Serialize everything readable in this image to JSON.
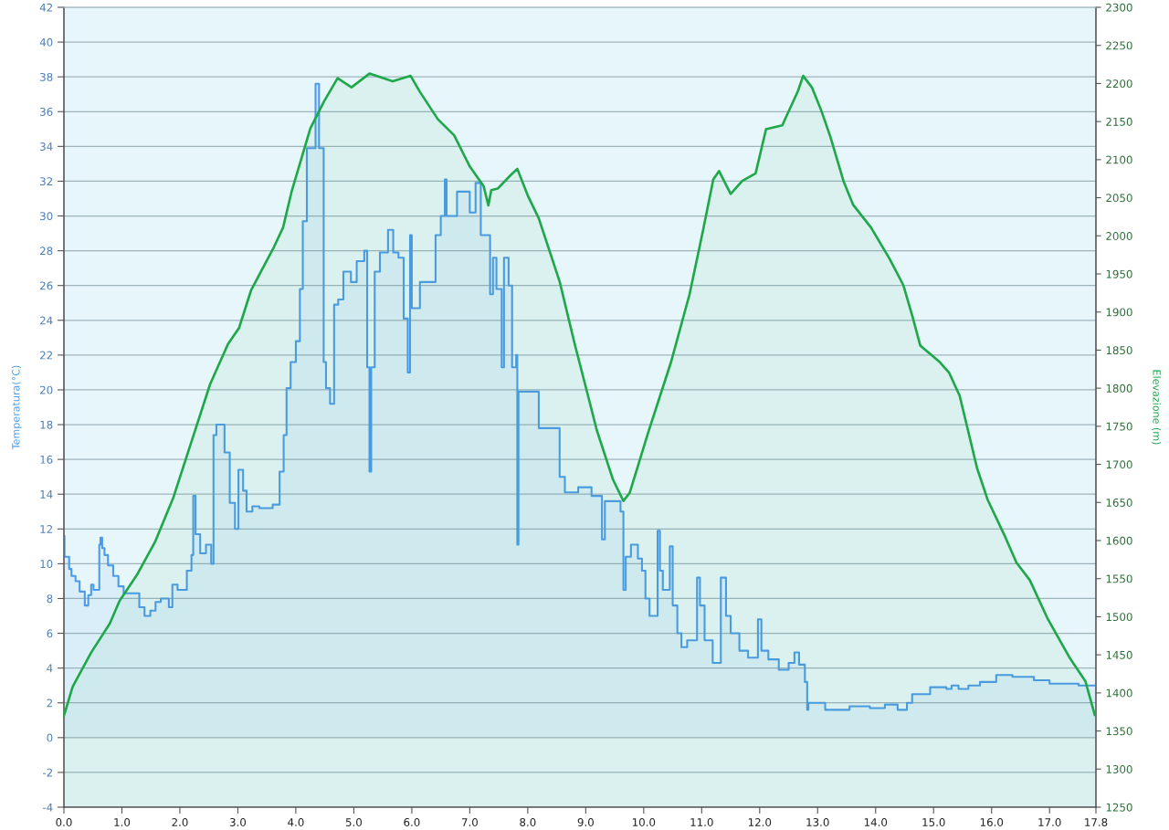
{
  "chart_data": {
    "type": "area",
    "ylabel": "Temperatura(°C)",
    "y2label": "Elevazione (m)",
    "xlim": [
      0,
      17.8
    ],
    "xticks": [
      {
        "value": 0,
        "label": "0.0"
      },
      {
        "value": 1,
        "label": "1.0"
      },
      {
        "value": 2,
        "label": "2.0"
      },
      {
        "value": 3,
        "label": "3.0"
      },
      {
        "value": 4,
        "label": "4.0"
      },
      {
        "value": 5,
        "label": "5.0"
      },
      {
        "value": 6,
        "label": "6.0"
      },
      {
        "value": 7,
        "label": "7.0"
      },
      {
        "value": 8,
        "label": "8.0"
      },
      {
        "value": 9,
        "label": "9.0"
      },
      {
        "value": 10,
        "label": "10.0"
      },
      {
        "value": 11,
        "label": "11.0"
      },
      {
        "value": 12,
        "label": "12.0"
      },
      {
        "value": 13,
        "label": "13.0"
      },
      {
        "value": 14,
        "label": "14.0"
      },
      {
        "value": 15,
        "label": "15.0"
      },
      {
        "value": 16,
        "label": "16.0"
      },
      {
        "value": 17,
        "label": "17.0"
      },
      17.8
    ],
    "ylim": [
      -4,
      42
    ],
    "yticks": [
      -4,
      -2,
      0,
      2,
      4,
      6,
      8,
      10,
      12,
      14,
      16,
      18,
      20,
      22,
      24,
      26,
      28,
      30,
      32,
      34,
      36,
      38,
      40,
      42
    ],
    "y2lim": [
      1250,
      2300
    ],
    "y2ticks": [
      1250,
      1300,
      1350,
      1400,
      1450,
      1500,
      1550,
      1600,
      1650,
      1700,
      1750,
      1800,
      1850,
      1900,
      1950,
      2000,
      2050,
      2100,
      2150,
      2200,
      2250,
      2300
    ],
    "grid": "y",
    "series": [
      {
        "color": "#4c9be8",
        "x": [
          0.0,
          0.01,
          0.01,
          0.09,
          0.09,
          0.13,
          0.13,
          0.2,
          0.2,
          0.27,
          0.27,
          0.36,
          0.36,
          0.42,
          0.42,
          0.47,
          0.47,
          0.51,
          0.51,
          0.61,
          0.61,
          0.63,
          0.63,
          0.66,
          0.66,
          0.7,
          0.7,
          0.76,
          0.76,
          0.85,
          0.85,
          0.94,
          0.94,
          1.03,
          1.03,
          1.3,
          1.3,
          1.39,
          1.39,
          1.49,
          1.49,
          1.58,
          1.58,
          1.67,
          1.67,
          1.81,
          1.81,
          1.87,
          1.87,
          1.96,
          1.96,
          2.12,
          2.12,
          2.2,
          2.2,
          2.23,
          2.23,
          2.27,
          2.27,
          2.35,
          2.35,
          2.45,
          2.45,
          2.54,
          2.54,
          2.58,
          2.58,
          2.63,
          2.63,
          2.77,
          2.77,
          2.86,
          2.86,
          2.95,
          2.95,
          3.01,
          3.01,
          3.09,
          3.09,
          3.15,
          3.15,
          3.25,
          3.25,
          3.37,
          3.37,
          3.6,
          3.6,
          3.72,
          3.72,
          3.79,
          3.79,
          3.84,
          3.84,
          3.91,
          3.91,
          4.0,
          4.0,
          4.07,
          4.07,
          4.12,
          4.12,
          4.19,
          4.19,
          4.34,
          4.34,
          4.4,
          4.4,
          4.48,
          4.48,
          4.52,
          4.52,
          4.59,
          4.59,
          4.66,
          4.66,
          4.73,
          4.73,
          4.82,
          4.82,
          4.95,
          4.95,
          5.05,
          5.05,
          5.18,
          5.18,
          5.23,
          5.23,
          5.27,
          5.27,
          5.3,
          5.3,
          5.36,
          5.36,
          5.45,
          5.45,
          5.59,
          5.59,
          5.68,
          5.68,
          5.77,
          5.77,
          5.86,
          5.86,
          5.93,
          5.93,
          5.97,
          5.97,
          6.0,
          6.0,
          6.14,
          6.14,
          6.41,
          6.41,
          6.5,
          6.5,
          6.57,
          6.57,
          6.6,
          6.6,
          6.78,
          6.78,
          7.0,
          7.0,
          7.1,
          7.1,
          7.19,
          7.19,
          7.35,
          7.35,
          7.4,
          7.4,
          7.46,
          7.46,
          7.55,
          7.55,
          7.59,
          7.59,
          7.67,
          7.67,
          7.73,
          7.73,
          7.8,
          7.8,
          7.82,
          7.82,
          7.84,
          7.84,
          8.19,
          8.19,
          8.55,
          8.55,
          8.64,
          8.64,
          8.87,
          8.87,
          9.1,
          9.1,
          9.28,
          9.28,
          9.33,
          9.33,
          9.6,
          9.6,
          9.65,
          9.65,
          9.69,
          9.69,
          9.78,
          9.78,
          9.9,
          9.9,
          9.97,
          9.97,
          10.03,
          10.03,
          10.1,
          10.1,
          10.24,
          10.24,
          10.28,
          10.28,
          10.33,
          10.33,
          10.45,
          10.45,
          10.5,
          10.5,
          10.58,
          10.58,
          10.65,
          10.65,
          10.75,
          10.75,
          10.92,
          10.92,
          10.97,
          10.97,
          11.05,
          11.05,
          11.19,
          11.19,
          11.33,
          11.33,
          11.42,
          11.42,
          11.5,
          11.5,
          11.65,
          11.65,
          11.8,
          11.8,
          11.97,
          11.97,
          12.03,
          12.03,
          12.15,
          12.15,
          12.33,
          12.33,
          12.5,
          12.5,
          12.6,
          12.6,
          12.68,
          12.68,
          12.78,
          12.78,
          12.82,
          12.82,
          12.84,
          12.84,
          13.13,
          13.13,
          13.55,
          13.55,
          13.9,
          13.9,
          14.16,
          14.16,
          14.38,
          14.38,
          14.54,
          14.54,
          14.63,
          14.63,
          14.94,
          14.94,
          15.22,
          15.22,
          15.31,
          15.31,
          15.43,
          15.43,
          15.6,
          15.6,
          15.8,
          15.8,
          16.08,
          16.08,
          16.36,
          16.36,
          16.73,
          16.73,
          17.0,
          17.0,
          17.5,
          17.5,
          17.8
        ],
        "values": [
          11.6,
          11.6,
          10.4,
          10.4,
          9.7,
          9.7,
          9.3,
          9.3,
          9.0,
          9.0,
          8.4,
          8.4,
          7.6,
          7.6,
          8.2,
          8.2,
          8.8,
          8.8,
          8.5,
          8.5,
          11.1,
          11.1,
          11.5,
          11.5,
          10.9,
          10.9,
          10.5,
          10.5,
          9.9,
          9.9,
          9.3,
          9.3,
          8.7,
          8.7,
          8.3,
          8.3,
          7.5,
          7.5,
          7.0,
          7.0,
          7.3,
          7.3,
          7.8,
          7.8,
          8.0,
          8.0,
          7.5,
          7.5,
          8.8,
          8.8,
          8.5,
          8.5,
          9.6,
          9.6,
          10.5,
          10.5,
          13.9,
          13.9,
          11.7,
          11.7,
          10.6,
          10.6,
          11.1,
          11.1,
          10.0,
          10.0,
          17.4,
          17.4,
          18.0,
          18.0,
          16.4,
          16.4,
          13.5,
          13.5,
          12.0,
          12.0,
          15.4,
          15.4,
          14.2,
          14.2,
          13.0,
          13.0,
          13.3,
          13.3,
          13.2,
          13.2,
          13.4,
          13.4,
          15.3,
          15.3,
          17.4,
          17.4,
          20.1,
          20.1,
          21.6,
          21.6,
          22.8,
          22.8,
          25.8,
          25.8,
          29.7,
          29.7,
          33.9,
          33.9,
          37.6,
          37.6,
          33.9,
          33.9,
          21.6,
          21.6,
          20.1,
          20.1,
          19.2,
          19.2,
          24.9,
          24.9,
          25.2,
          25.2,
          26.8,
          26.8,
          26.2,
          26.2,
          27.4,
          27.4,
          28.0,
          28.0,
          21.3,
          21.3,
          15.3,
          15.3,
          21.3,
          21.3,
          26.8,
          26.8,
          27.9,
          27.9,
          29.2,
          29.2,
          27.9,
          27.9,
          27.6,
          27.6,
          24.1,
          24.1,
          21.0,
          21.0,
          28.9,
          28.9,
          24.7,
          24.7,
          26.2,
          26.2,
          28.9,
          28.9,
          30.0,
          30.0,
          32.1,
          32.1,
          30.0,
          30.0,
          31.4,
          31.4,
          30.2,
          30.2,
          31.9,
          31.9,
          28.9,
          28.9,
          25.5,
          25.5,
          27.6,
          27.6,
          25.8,
          25.8,
          21.3,
          21.3,
          27.6,
          27.6,
          26.0,
          26.0,
          21.3,
          21.3,
          22.0,
          22.0,
          11.1,
          11.1,
          19.9,
          19.9,
          17.8,
          17.8,
          15.0,
          15.0,
          14.1,
          14.1,
          14.4,
          14.4,
          13.9,
          13.9,
          11.4,
          11.4,
          13.6,
          13.6,
          13.0,
          13.0,
          8.5,
          8.5,
          10.4,
          10.4,
          11.1,
          11.1,
          10.3,
          10.3,
          9.6,
          9.6,
          8.0,
          8.0,
          7.0,
          7.0,
          11.9,
          11.9,
          9.6,
          9.6,
          8.5,
          8.5,
          11.0,
          11.0,
          7.6,
          7.6,
          6.0,
          6.0,
          5.2,
          5.2,
          5.6,
          5.6,
          9.2,
          9.2,
          7.6,
          7.6,
          5.6,
          5.6,
          4.3,
          4.3,
          9.2,
          9.2,
          7.0,
          7.0,
          6.0,
          6.0,
          5.0,
          5.0,
          4.6,
          4.6,
          6.8,
          6.8,
          5.0,
          5.0,
          4.5,
          4.5,
          3.9,
          3.9,
          4.3,
          4.3,
          4.9,
          4.9,
          4.2,
          4.2,
          3.2,
          3.2,
          1.6,
          1.6,
          2.0,
          2.0,
          1.6,
          1.6,
          1.8,
          1.8,
          1.7,
          1.7,
          1.9,
          1.9,
          1.6,
          1.6,
          2.0,
          2.0,
          2.5,
          2.5,
          2.9,
          2.9,
          2.8,
          2.8,
          3.0,
          3.0,
          2.8,
          2.8,
          3.0,
          3.0,
          3.2,
          3.2,
          3.6,
          3.6,
          3.5,
          3.5,
          3.3,
          3.3,
          3.1,
          3.1,
          3.0,
          3.0
        ]
      },
      {
        "axis": "y2",
        "color": "#1fa84a",
        "x": [
          0.0,
          0.15,
          0.47,
          0.79,
          0.96,
          1.26,
          1.57,
          1.89,
          2.2,
          2.52,
          2.83,
          3.02,
          3.23,
          3.62,
          3.78,
          3.93,
          4.25,
          4.49,
          4.72,
          4.96,
          5.27,
          5.67,
          5.98,
          6.14,
          6.45,
          6.61,
          6.73,
          7.0,
          7.24,
          7.32,
          7.37,
          7.48,
          7.71,
          7.82,
          8.0,
          8.19,
          8.55,
          8.81,
          9.05,
          9.19,
          9.47,
          9.65,
          9.76,
          10.07,
          10.47,
          10.79,
          11.02,
          11.2,
          11.3,
          11.5,
          11.7,
          11.93,
          12.11,
          12.39,
          12.66,
          12.75,
          12.9,
          13.06,
          13.22,
          13.45,
          13.61,
          13.92,
          14.24,
          14.48,
          14.64,
          14.77,
          15.11,
          15.27,
          15.45,
          15.75,
          15.93,
          16.24,
          16.43,
          16.66,
          16.97,
          17.34,
          17.62,
          17.78
        ],
        "values": [
          1370,
          1408,
          1453,
          1491,
          1521,
          1555,
          1598,
          1657,
          1730,
          1805,
          1858,
          1879,
          1929,
          1985,
          2011,
          2059,
          2141,
          2177,
          2207,
          2195,
          2213,
          2203,
          2210,
          2189,
          2153,
          2141,
          2132,
          2091,
          2065,
          2040,
          2060,
          2062,
          2080,
          2088,
          2053,
          2023,
          1940,
          1858,
          1787,
          1745,
          1680,
          1652,
          1663,
          1740,
          1834,
          1923,
          2006,
          2074,
          2085,
          2055,
          2072,
          2082,
          2140,
          2145,
          2190,
          2210,
          2195,
          2165,
          2130,
          2071,
          2041,
          2011,
          1970,
          1935,
          1893,
          1856,
          1834,
          1820,
          1790,
          1695,
          1654,
          1604,
          1571,
          1548,
          1497,
          1447,
          1415,
          1371
        ]
      }
    ]
  }
}
